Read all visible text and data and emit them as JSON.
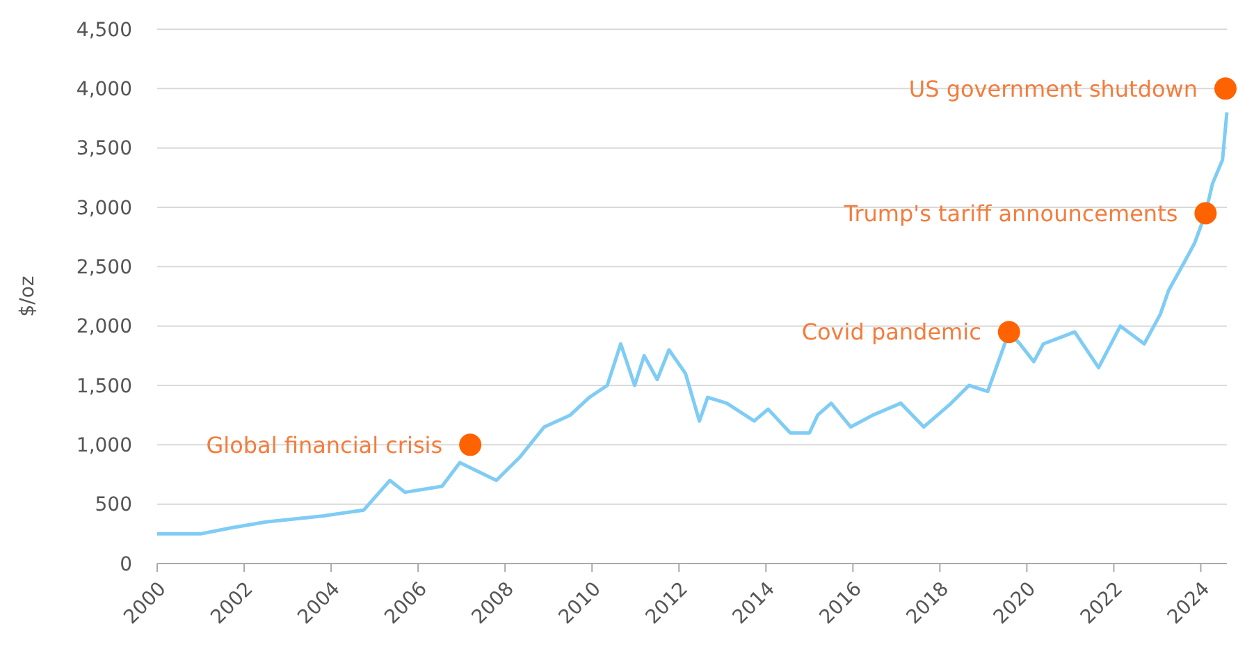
{
  "chart_data": {
    "type": "line",
    "ylabel": "$/oz",
    "xlim": [
      2000,
      2024.6
    ],
    "xticks": [
      2000,
      2002,
      2004,
      2006,
      2008,
      2010,
      2012,
      2014,
      2016,
      2018,
      2020,
      2022,
      2024
    ],
    "ylim": [
      0,
      4500
    ],
    "yticks": [
      {
        "value": 0,
        "label": "0"
      },
      {
        "value": 500,
        "label": "500"
      },
      {
        "value": 1000,
        "label": "1,000"
      },
      {
        "value": 1500,
        "label": "1,500"
      },
      {
        "value": 2000,
        "label": "2,000"
      },
      {
        "value": 2500,
        "label": "2,500"
      },
      {
        "value": 3000,
        "label": "3,000"
      },
      {
        "value": 3500,
        "label": "3,500"
      },
      {
        "value": 4000,
        "label": "4,000"
      },
      {
        "value": 4500,
        "label": "4,500"
      }
    ],
    "grid": "y",
    "marker": "none",
    "line_style": "solid",
    "series": [
      {
        "color": "#7fccf5",
        "x": [
          2000,
          2001,
          2001.7,
          2002.5,
          2003.8,
          2004.75,
          2005.35,
          2005.7,
          2006.55,
          2006.96,
          2007.8,
          2008.35,
          2008.9,
          2009.5,
          2009.94,
          2010.35,
          2010.66,
          2010.98,
          2011.2,
          2011.5,
          2011.77,
          2012.15,
          2012.47,
          2012.66,
          2013.1,
          2013.73,
          2014.05,
          2014.56,
          2015.0,
          2015.19,
          2015.5,
          2015.95,
          2016.46,
          2017.1,
          2017.63,
          2018.26,
          2018.67,
          2019.1,
          2019.59,
          2019.84,
          2020.16,
          2020.38,
          2021.1,
          2021.65,
          2022.15,
          2022.7,
          2023.07,
          2023.26,
          2023.64,
          2023.86,
          2024.11,
          2024.27,
          2024.5,
          2024.6
        ],
        "values": [
          250,
          250,
          300,
          350,
          400,
          450,
          700,
          600,
          650,
          850,
          700,
          900,
          1150,
          1250,
          1400,
          1500,
          1850,
          1500,
          1750,
          1550,
          1800,
          1600,
          1200,
          1400,
          1350,
          1200,
          1300,
          1100,
          1100,
          1250,
          1350,
          1150,
          1250,
          1350,
          1150,
          1350,
          1500,
          1450,
          1950,
          1850,
          1700,
          1850,
          1950,
          1650,
          2000,
          1850,
          2100,
          2300,
          2550,
          2700,
          2950,
          3200,
          3400,
          3800
        ]
      }
    ],
    "annotations": [
      {
        "text": "Global financial crisis",
        "x": 2007.2,
        "y": 1000
      },
      {
        "text": "Covid pandemic",
        "x": 2019.59,
        "y": 1950
      },
      {
        "text": "Trump's tariff announcements",
        "x": 2024.11,
        "y": 2950
      },
      {
        "text": "US government shutdown",
        "x": 2024.6,
        "y": 4000
      }
    ]
  }
}
